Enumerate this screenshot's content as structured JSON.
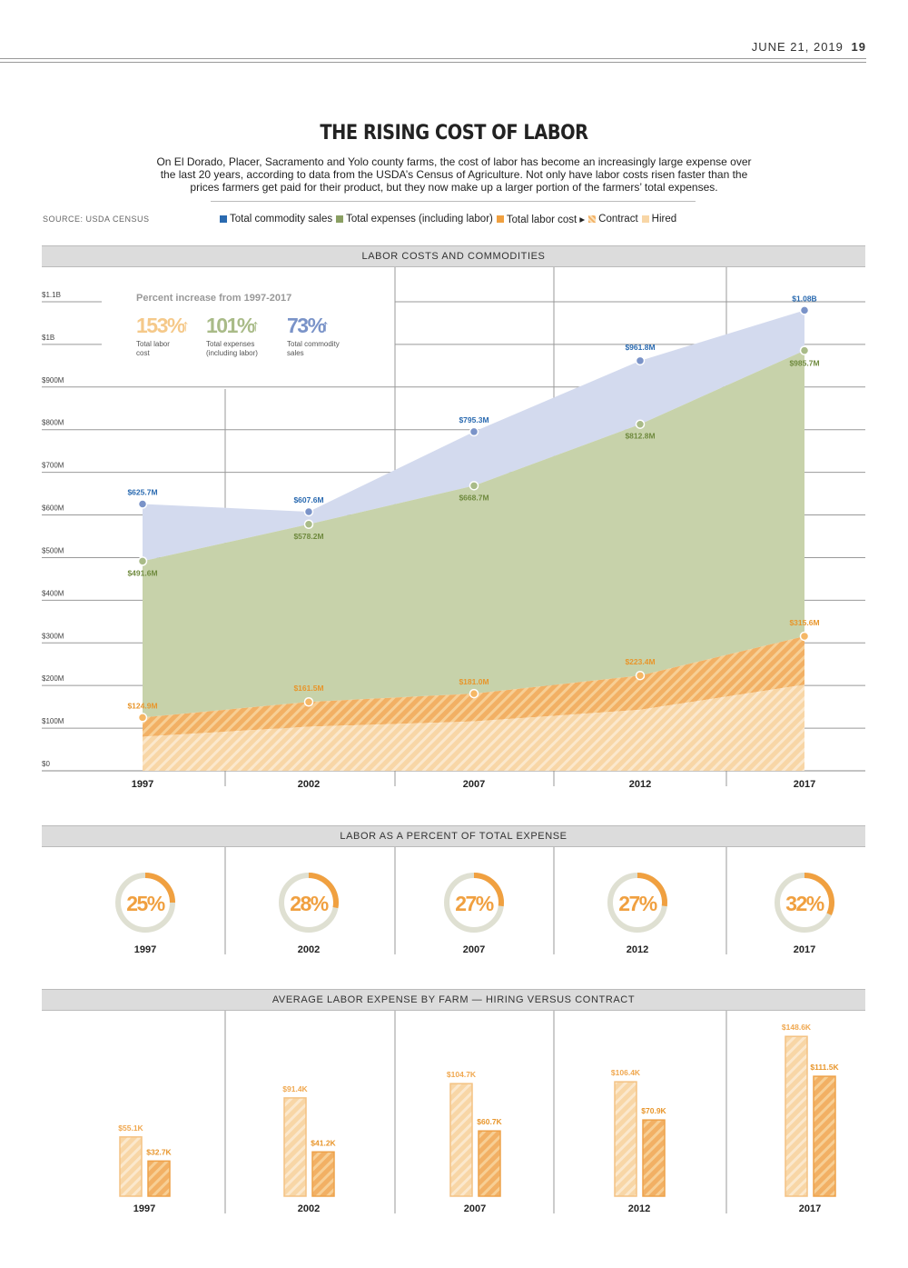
{
  "header": {
    "date": "JUNE 21, 2019",
    "page": "19"
  },
  "title": "THE RISING COST OF LABOR",
  "intro": "On El Dorado, Placer, Sacramento and Yolo county farms, the cost of labor has become an increasingly large expense over the last 20 years, according to data from the USDA’s Census of Agriculture. Not only have labor costs risen faster than the prices farmers get paid for their product, but they now make up a larger portion of the farmers’ total expenses.",
  "source": "SOURCE: USDA CENSUS",
  "legend": {
    "sales": "Total commodity sales",
    "expenses": "Total expenses (including labor)",
    "labor": "Total labor cost ▸",
    "contract": "Contract",
    "hired": "Hired"
  },
  "colors": {
    "sales": "#2a6ab0",
    "sales_fill": "#d3daee",
    "sales_dot": "#7a93c8",
    "expenses": "#8a9f63",
    "expenses_fill": "#c7d2aa",
    "expenses_dot": "#a9bb88",
    "labor": "#f0a040",
    "hired_fill": "#f8d6a6",
    "contract_fill": "#f2b064",
    "band": "#dcdcdc",
    "ring_track": "#dfe0d2"
  },
  "sections": {
    "main": "LABOR COSTS AND COMMODITIES",
    "percent": "LABOR AS A PERCENT OF TOTAL EXPENSE",
    "farm": "AVERAGE LABOR EXPENSE BY FARM — HIRING VERSUS CONTRACT"
  },
  "increase": {
    "heading": "Percent increase from 1997-2017",
    "items": [
      {
        "value": "153%",
        "arrow": "↑",
        "label1": "Total labor",
        "label2": "cost",
        "color": "#f5c98a"
      },
      {
        "value": "101%",
        "arrow": "↑",
        "label1": "Total expenses",
        "label2": "(including labor)",
        "color": "#a9bb88"
      },
      {
        "value": "73%",
        "arrow": "↑",
        "label1": "Total commodity",
        "label2": "sales",
        "color": "#7a93c8"
      }
    ]
  },
  "chart_data": [
    {
      "type": "area",
      "title": "LABOR COSTS AND COMMODITIES",
      "categories": [
        "1997",
        "2002",
        "2007",
        "2012",
        "2017"
      ],
      "y_ticks": [
        "$0",
        "$100M",
        "$200M",
        "$300M",
        "$400M",
        "$500M",
        "$600M",
        "$700M",
        "$800M",
        "$900M",
        "$1B",
        "$1.1B"
      ],
      "ylim": [
        0,
        1100
      ],
      "series": [
        {
          "name": "Total commodity sales",
          "values": [
            625.7,
            607.6,
            795.3,
            961.8,
            1080
          ],
          "labels": [
            "$625.7M",
            "$607.6M",
            "$795.3M",
            "$961.8M",
            "$1.08B"
          ]
        },
        {
          "name": "Total expenses (including labor)",
          "values": [
            491.6,
            578.2,
            668.7,
            812.8,
            985.7
          ],
          "labels": [
            "$491.6M",
            "$578.2M",
            "$668.7M",
            "$812.8M",
            "$985.7M"
          ]
        },
        {
          "name": "Total labor cost",
          "values": [
            124.9,
            161.5,
            181.0,
            223.4,
            315.6
          ],
          "labels": [
            "$124.9M",
            "$161.5M",
            "$181.0M",
            "$223.4M",
            "$315.6M"
          ]
        }
      ]
    },
    {
      "type": "donut",
      "title": "LABOR AS A PERCENT OF TOTAL EXPENSE",
      "categories": [
        "1997",
        "2002",
        "2007",
        "2012",
        "2017"
      ],
      "values": [
        25,
        28,
        27,
        27,
        32
      ],
      "labels": [
        "25%",
        "28%",
        "27%",
        "27%",
        "32%"
      ]
    },
    {
      "type": "bar",
      "title": "AVERAGE LABOR EXPENSE BY FARM — HIRING VERSUS CONTRACT",
      "categories": [
        "1997",
        "2002",
        "2007",
        "2012",
        "2017"
      ],
      "ylim": [
        0,
        150
      ],
      "series": [
        {
          "values": [
            55.1,
            91.4,
            104.7,
            106.4,
            148.6
          ],
          "labels": [
            "$55.1K",
            "$91.4K",
            "$104.7K",
            "$106.4K",
            "$148.6K"
          ]
        },
        {
          "values": [
            32.7,
            41.2,
            60.7,
            70.9,
            111.5
          ],
          "labels": [
            "$32.7K",
            "$41.2K",
            "$60.7K",
            "$70.9K",
            "$111.5K"
          ]
        }
      ]
    }
  ]
}
